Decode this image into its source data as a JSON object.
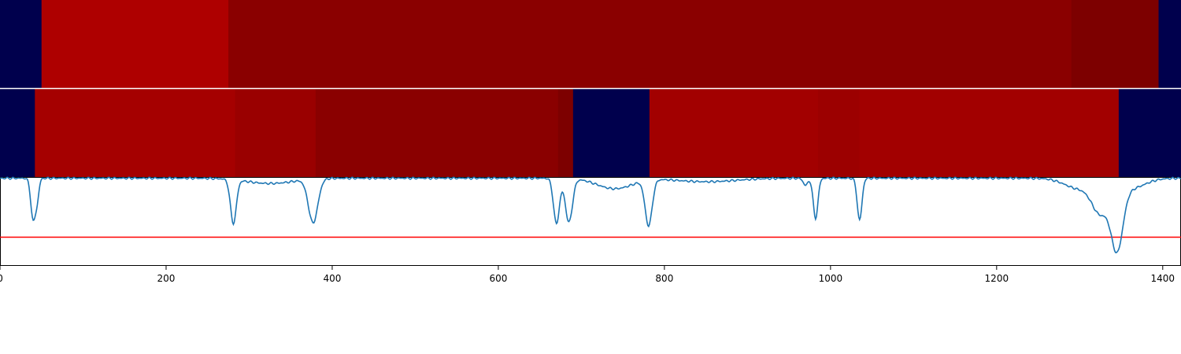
{
  "chart_data": {
    "type": "heatmap",
    "x_range": [
      0,
      1422
    ],
    "x_ticks": [
      {
        "value": 0,
        "label": "0"
      },
      {
        "value": 200,
        "label": "200"
      },
      {
        "value": 400,
        "label": "400"
      },
      {
        "value": 600,
        "label": "600"
      },
      {
        "value": 800,
        "label": "800"
      },
      {
        "value": 1000,
        "label": "1000"
      },
      {
        "value": 1200,
        "label": "1200"
      },
      {
        "value": 1400,
        "label": "1400"
      }
    ],
    "tracks": [
      {
        "segments": [
          {
            "start": 0,
            "end": 50,
            "color": "#00004d"
          },
          {
            "start": 50,
            "end": 275,
            "color": "#ae0000"
          },
          {
            "start": 275,
            "end": 1290,
            "color": "#8a0000"
          },
          {
            "start": 1290,
            "end": 1395,
            "color": "#7d0000"
          },
          {
            "start": 1395,
            "end": 1422,
            "color": "#00004d"
          }
        ]
      },
      {
        "segments": [
          {
            "start": 0,
            "end": 42,
            "color": "#00004d"
          },
          {
            "start": 42,
            "end": 283,
            "color": "#a50000"
          },
          {
            "start": 283,
            "end": 380,
            "color": "#9a0000"
          },
          {
            "start": 380,
            "end": 672,
            "color": "#8a0000"
          },
          {
            "start": 672,
            "end": 690,
            "color": "#7d0000"
          },
          {
            "start": 690,
            "end": 782,
            "color": "#00004d"
          },
          {
            "start": 782,
            "end": 985,
            "color": "#a20000"
          },
          {
            "start": 985,
            "end": 1035,
            "color": "#9c0000"
          },
          {
            "start": 1035,
            "end": 1347,
            "color": "#a20000"
          },
          {
            "start": 1347,
            "end": 1422,
            "color": "#00004d"
          }
        ]
      }
    ],
    "line": {
      "color": "#1f77b4",
      "y_range": [
        0,
        1
      ],
      "baseline": 0.995,
      "dips": [
        {
          "center": 40,
          "depth": 0.48,
          "width": 4
        },
        {
          "center": 45,
          "depth": 0.2,
          "width": 3
        },
        {
          "center": 281,
          "depth": 0.5,
          "width": 5
        },
        {
          "center": 325,
          "depth": 0.06,
          "width": 40
        },
        {
          "center": 377,
          "depth": 0.5,
          "width": 8
        },
        {
          "center": 670,
          "depth": 0.52,
          "width": 5
        },
        {
          "center": 685,
          "depth": 0.5,
          "width": 6
        },
        {
          "center": 740,
          "depth": 0.12,
          "width": 30
        },
        {
          "center": 781,
          "depth": 0.52,
          "width": 6
        },
        {
          "center": 850,
          "depth": 0.04,
          "width": 50
        },
        {
          "center": 970,
          "depth": 0.08,
          "width": 4
        },
        {
          "center": 982,
          "depth": 0.46,
          "width": 4
        },
        {
          "center": 1035,
          "depth": 0.48,
          "width": 4
        },
        {
          "center": 1300,
          "depth": 0.12,
          "width": 25
        },
        {
          "center": 1325,
          "depth": 0.35,
          "width": 14
        },
        {
          "center": 1345,
          "depth": 0.72,
          "width": 10
        },
        {
          "center": 1360,
          "depth": 0.12,
          "width": 25
        }
      ]
    },
    "threshold": {
      "value": 0.32,
      "color": "#ff0000"
    }
  }
}
